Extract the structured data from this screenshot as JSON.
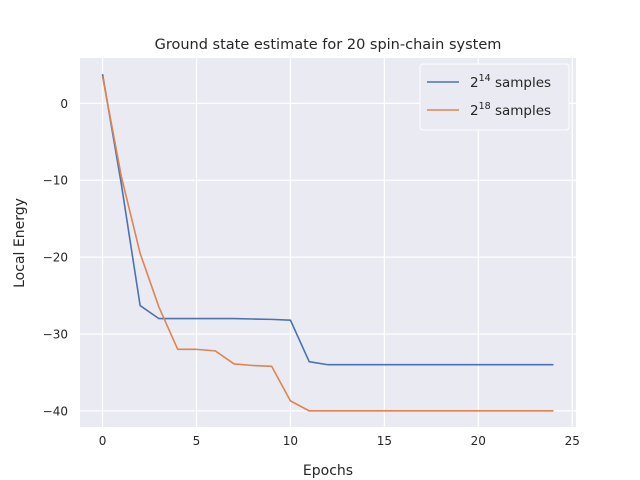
{
  "chart_data": {
    "type": "line",
    "title": "Ground state estimate for 20 spin-chain system",
    "xlabel": "Epochs",
    "ylabel": "Local Energy",
    "xlim": [
      -1.2,
      25.2
    ],
    "ylim": [
      -42.1,
      5.9
    ],
    "xticks": [
      0,
      5,
      10,
      15,
      20,
      25
    ],
    "yticks": [
      0,
      -10,
      -20,
      -30,
      -40
    ],
    "xtick_labels": [
      "0",
      "5",
      "10",
      "15",
      "20",
      "25"
    ],
    "ytick_labels": [
      "0",
      "−10",
      "−20",
      "−30",
      "−40"
    ],
    "grid": true,
    "legend_position": "top-right",
    "x": [
      0,
      1,
      2,
      3,
      4,
      5,
      6,
      7,
      8,
      9,
      10,
      11,
      12,
      13,
      14,
      15,
      16,
      17,
      18,
      19,
      20,
      21,
      22,
      23,
      24
    ],
    "series": [
      {
        "base": "2",
        "exponent": "14",
        "suffix": " samples",
        "color": "#4c72b0",
        "values": [
          3.8,
          -10.5,
          -26.3,
          -28.0,
          -28.0,
          -28.0,
          -28.0,
          -28.0,
          -28.05,
          -28.1,
          -28.2,
          -33.6,
          -34.0,
          -34.0,
          -34.0,
          -34.0,
          -34.0,
          -34.0,
          -34.0,
          -34.0,
          -34.0,
          -34.0,
          -34.0,
          -34.0,
          -34.0
        ]
      },
      {
        "base": "2",
        "exponent": "18",
        "suffix": " samples",
        "color": "#dd8452",
        "values": [
          3.5,
          -9.5,
          -19.5,
          -26.5,
          -32.0,
          -32.0,
          -32.2,
          -33.9,
          -34.1,
          -34.2,
          -38.7,
          -40.0,
          -40.0,
          -40.0,
          -40.0,
          -40.0,
          -40.0,
          -40.0,
          -40.0,
          -40.0,
          -40.0,
          -40.0,
          -40.0,
          -40.0,
          -40.0
        ]
      }
    ]
  }
}
